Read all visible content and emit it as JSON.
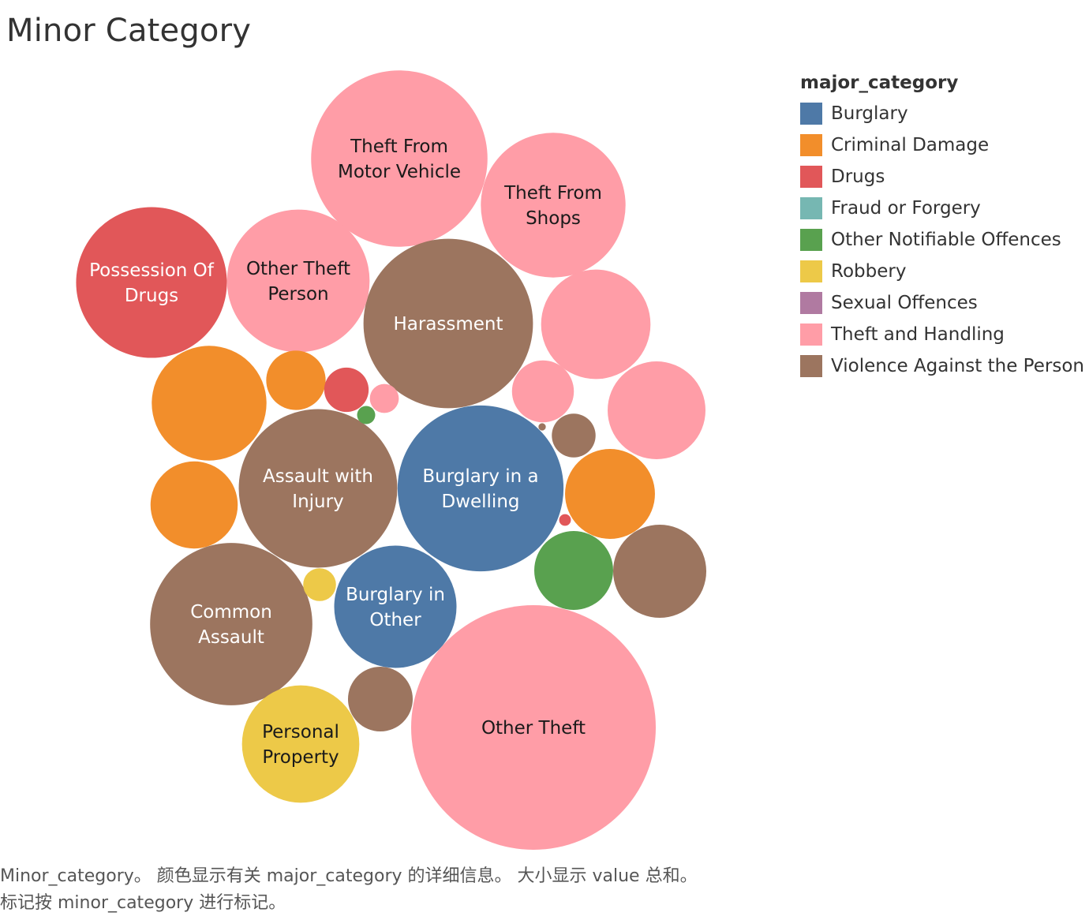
{
  "title": "Minor Category",
  "caption": {
    "line1": "Minor_category。 颜色显示有关 major_category 的详细信息。 大小显示 value 总和。",
    "line2": "标记按 minor_category 进行标记。"
  },
  "legend": {
    "title": "major_category",
    "items": [
      {
        "label": "Burglary",
        "color": "#4e79a7"
      },
      {
        "label": "Criminal Damage",
        "color": "#f28e2b"
      },
      {
        "label": "Drugs",
        "color": "#e15759"
      },
      {
        "label": "Fraud or Forgery",
        "color": "#76b7b2"
      },
      {
        "label": "Other Notifiable Offences",
        "color": "#59a14f"
      },
      {
        "label": "Robbery",
        "color": "#edc948"
      },
      {
        "label": "Sexual Offences",
        "color": "#b07aa1"
      },
      {
        "label": "Theft and Handling",
        "color": "#ff9da7"
      },
      {
        "label": "Violence Against the Person",
        "color": "#9c755f"
      }
    ]
  },
  "chart_data": {
    "type": "bubble",
    "size_field": "value",
    "color_field": "major_category",
    "label_field": "minor_category",
    "bubbles": [
      {
        "label": [
          "Other Theft"
        ],
        "category": "Theft and Handling",
        "value": 100,
        "text_color": "#1a1a1a"
      },
      {
        "label": [
          "Theft From",
          "Motor Vehicle"
        ],
        "category": "Theft and Handling",
        "value": 52,
        "text_color": "#1a1a1a"
      },
      {
        "label": [
          "Harassment"
        ],
        "category": "Violence Against the Person",
        "value": 48,
        "text_color": "#ffffff"
      },
      {
        "label": [
          "Burglary in a",
          "Dwelling"
        ],
        "category": "Burglary",
        "value": 46,
        "text_color": "#ffffff"
      },
      {
        "label": [
          "Common",
          "Assault"
        ],
        "category": "Violence Against the Person",
        "value": 44,
        "text_color": "#ffffff"
      },
      {
        "label": [
          "Assault with",
          "Injury"
        ],
        "category": "Violence Against the Person",
        "value": 42,
        "text_color": "#ffffff"
      },
      {
        "label": [
          "Possession Of",
          "Drugs"
        ],
        "category": "Drugs",
        "value": 38,
        "text_color": "#ffffff"
      },
      {
        "label": [
          "Theft From",
          "Shops"
        ],
        "category": "Theft and Handling",
        "value": 35,
        "text_color": "#1a1a1a"
      },
      {
        "label": [
          "Other Theft",
          "Person"
        ],
        "category": "Theft and Handling",
        "value": 34,
        "text_color": "#1a1a1a"
      },
      {
        "label": [
          "Burglary in",
          "Other"
        ],
        "category": "Burglary",
        "value": 25,
        "text_color": "#ffffff"
      },
      {
        "label": [
          "Personal",
          "Property"
        ],
        "category": "Robbery",
        "value": 23,
        "text_color": "#1a1a1a"
      },
      {
        "label": [],
        "category": "Criminal Damage",
        "value": 22
      },
      {
        "label": [],
        "category": "Theft and Handling",
        "value": 20
      },
      {
        "label": [],
        "category": "Theft and Handling",
        "value": 16
      },
      {
        "label": [],
        "category": "Violence Against the Person",
        "value": 14.5
      },
      {
        "label": [],
        "category": "Criminal Damage",
        "value": 13.5
      },
      {
        "label": [],
        "category": "Criminal Damage",
        "value": 12.7
      },
      {
        "label": [],
        "category": "Other Notifiable Offences",
        "value": 10.4
      },
      {
        "label": [],
        "category": "Violence Against the Person",
        "value": 7.0
      },
      {
        "label": [],
        "category": "Theft and Handling",
        "value": 6.4
      },
      {
        "label": [],
        "category": "Criminal Damage",
        "value": 5.9
      },
      {
        "label": [],
        "category": "Drugs",
        "value": 3.3
      },
      {
        "label": [],
        "category": "Violence Against the Person",
        "value": 3.2
      },
      {
        "label": [],
        "category": "Robbery",
        "value": 1.8
      },
      {
        "label": [],
        "category": "Theft and Handling",
        "value": 1.4
      },
      {
        "label": [],
        "category": "Other Notifiable Offences",
        "value": 0.55
      },
      {
        "label": [],
        "category": "Drugs",
        "value": 0.23
      },
      {
        "label": [],
        "category": "Violence Against the Person",
        "value": 0.09
      }
    ]
  }
}
